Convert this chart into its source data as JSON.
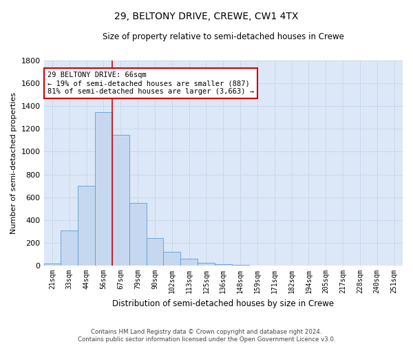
{
  "title": "29, BELTONY DRIVE, CREWE, CW1 4TX",
  "subtitle": "Size of property relative to semi-detached houses in Crewe",
  "xlabel": "Distribution of semi-detached houses by size in Crewe",
  "ylabel": "Number of semi-detached properties",
  "footer_line1": "Contains HM Land Registry data © Crown copyright and database right 2024.",
  "footer_line2": "Contains public sector information licensed under the Open Government Licence v3.0.",
  "bar_labels": [
    "21sqm",
    "33sqm",
    "44sqm",
    "56sqm",
    "67sqm",
    "79sqm",
    "90sqm",
    "102sqm",
    "113sqm",
    "125sqm",
    "136sqm",
    "148sqm",
    "159sqm",
    "171sqm",
    "182sqm",
    "194sqm",
    "205sqm",
    "217sqm",
    "228sqm",
    "240sqm",
    "251sqm"
  ],
  "bar_values": [
    20,
    310,
    700,
    1350,
    1150,
    550,
    240,
    120,
    60,
    25,
    15,
    5,
    3,
    2,
    1,
    0,
    0,
    0,
    0,
    0,
    0
  ],
  "bar_color": "#c5d8f0",
  "bar_edge_color": "#5b9bd5",
  "property_line_bin": 4,
  "property_label": "29 BELTONY DRIVE: 66sqm",
  "pct_smaller": 19,
  "pct_smaller_count": 887,
  "pct_larger": 81,
  "pct_larger_count": 3663,
  "annotation_box_color": "#ffffff",
  "annotation_border_color": "#cc0000",
  "line_color": "#cc0000",
  "ylim": [
    0,
    1800
  ],
  "yticks": [
    0,
    200,
    400,
    600,
    800,
    1000,
    1200,
    1400,
    1600,
    1800
  ],
  "grid_color": "#c8d8e8",
  "bg_color": "#dce8f8"
}
